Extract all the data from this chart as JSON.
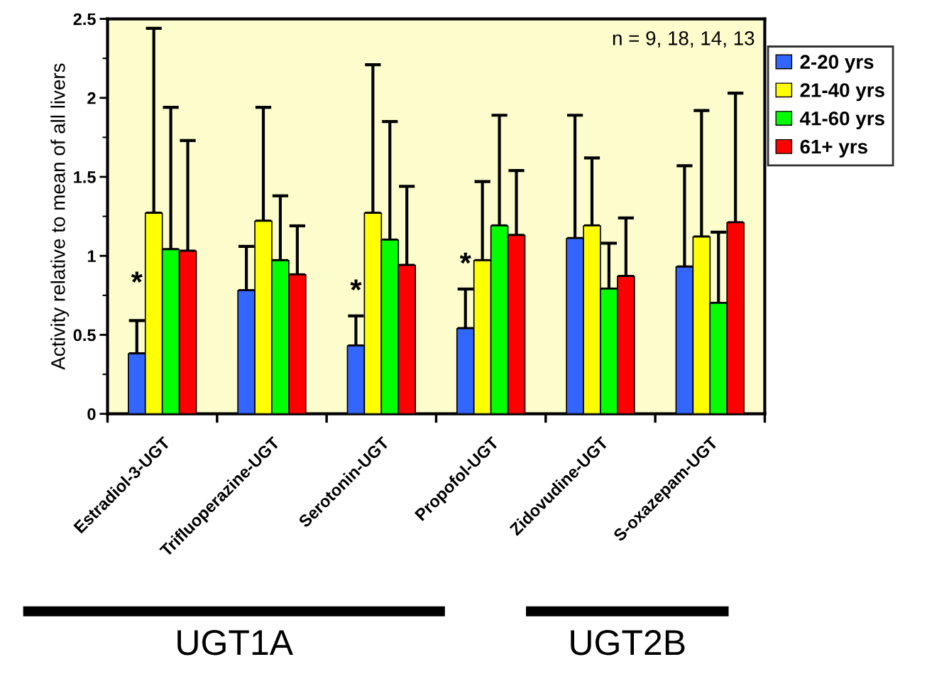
{
  "chart_data": {
    "type": "bar",
    "ylabel": "Activity relative to mean of all livers",
    "categories": [
      "Estradiol-3-UGT",
      "Trifluoperazine-UGT",
      "Serotonin-UGT",
      "Propofol-UGT",
      "Zidovudine-UGT",
      "S-oxazepam-UGT"
    ],
    "series": [
      {
        "name": "2-20 yrs",
        "color": "#3366ff",
        "values": [
          0.38,
          0.78,
          0.43,
          0.54,
          1.11,
          0.93
        ],
        "errors": [
          [
            0.38,
            0.59
          ],
          [
            0.78,
            1.06
          ],
          [
            0.43,
            0.62
          ],
          [
            0.54,
            0.79
          ],
          [
            1.11,
            1.89
          ],
          [
            0.93,
            1.57
          ]
        ]
      },
      {
        "name": "21-40 yrs",
        "color": "#ffff00",
        "values": [
          1.27,
          1.22,
          1.27,
          0.97,
          1.19,
          1.12
        ],
        "errors": [
          [
            1.27,
            2.44
          ],
          [
            1.22,
            1.94
          ],
          [
            1.27,
            2.21
          ],
          [
            0.97,
            1.47
          ],
          [
            1.19,
            1.62
          ],
          [
            1.12,
            1.92
          ]
        ]
      },
      {
        "name": "41-60 yrs",
        "color": "#00ff00",
        "values": [
          1.04,
          0.97,
          1.1,
          1.19,
          0.79,
          0.7
        ],
        "errors": [
          [
            1.04,
            1.94
          ],
          [
            0.97,
            1.38
          ],
          [
            1.1,
            1.85
          ],
          [
            1.19,
            1.89
          ],
          [
            0.79,
            1.08
          ],
          [
            0.7,
            1.15
          ]
        ]
      },
      {
        "name": "61+ yrs",
        "color": "#ff0000",
        "values": [
          1.03,
          0.88,
          0.94,
          1.13,
          0.87,
          1.21
        ],
        "errors": [
          [
            1.03,
            1.73
          ],
          [
            0.88,
            1.19
          ],
          [
            0.94,
            1.44
          ],
          [
            1.13,
            1.54
          ],
          [
            0.87,
            1.24
          ],
          [
            1.21,
            2.03
          ]
        ]
      }
    ],
    "ylim": [
      0,
      2.5
    ],
    "yticks": [
      0,
      0.5,
      1,
      1.5,
      2,
      2.5
    ],
    "grid": false,
    "legend": "right",
    "annotations": [
      "n = 9, 18, 14, 13",
      {
        "text": "*",
        "x": "Estradiol-3-UGT",
        "y": 0.82
      },
      {
        "text": "*",
        "x": "Serotonin-UGT",
        "y": 0.77
      },
      {
        "text": "*",
        "x": "Propofol-UGT",
        "y": 0.94
      },
      "UGT1A",
      "UGT2B"
    ]
  }
}
